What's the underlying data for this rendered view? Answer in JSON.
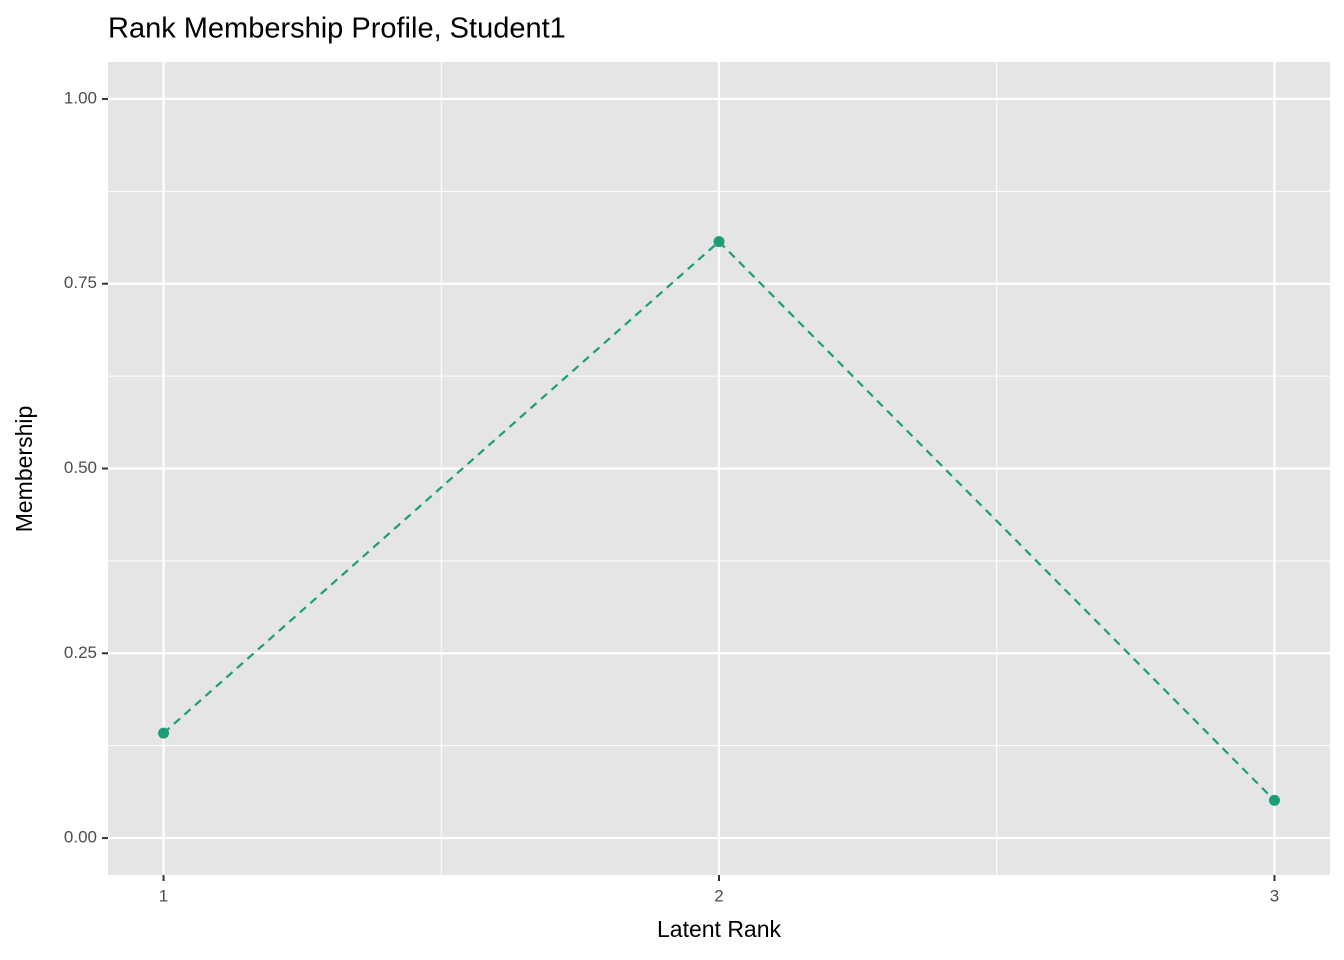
{
  "chart_data": {
    "type": "line",
    "title": "Rank Membership Profile, Student1",
    "x_label": "Latent Rank",
    "y_label": "Membership",
    "x": [
      1,
      2,
      3
    ],
    "series": [
      {
        "color": "#1b9e77",
        "values": [
          0.142,
          0.807,
          0.051
        ]
      }
    ],
    "line_style": "dashed",
    "markers": true,
    "xlim": [
      0.9,
      3.1
    ],
    "xticks": [
      1,
      2,
      3
    ],
    "xminor_ticks": [
      1.5,
      2.5
    ],
    "ylim": [
      -0.05,
      1.05
    ],
    "yticks": [
      {
        "value": 0,
        "label": "0.00"
      },
      {
        "value": 0.25,
        "label": "0.25"
      },
      {
        "value": 0.5,
        "label": "0.50"
      },
      {
        "value": 0.75,
        "label": "0.75"
      },
      {
        "value": 1,
        "label": "1.00"
      }
    ],
    "yminor_ticks": [
      0.125,
      0.375,
      0.625,
      0.875
    ],
    "grid": true,
    "panel_color": "#e5e5e5",
    "grid_color": "#ffffff"
  }
}
